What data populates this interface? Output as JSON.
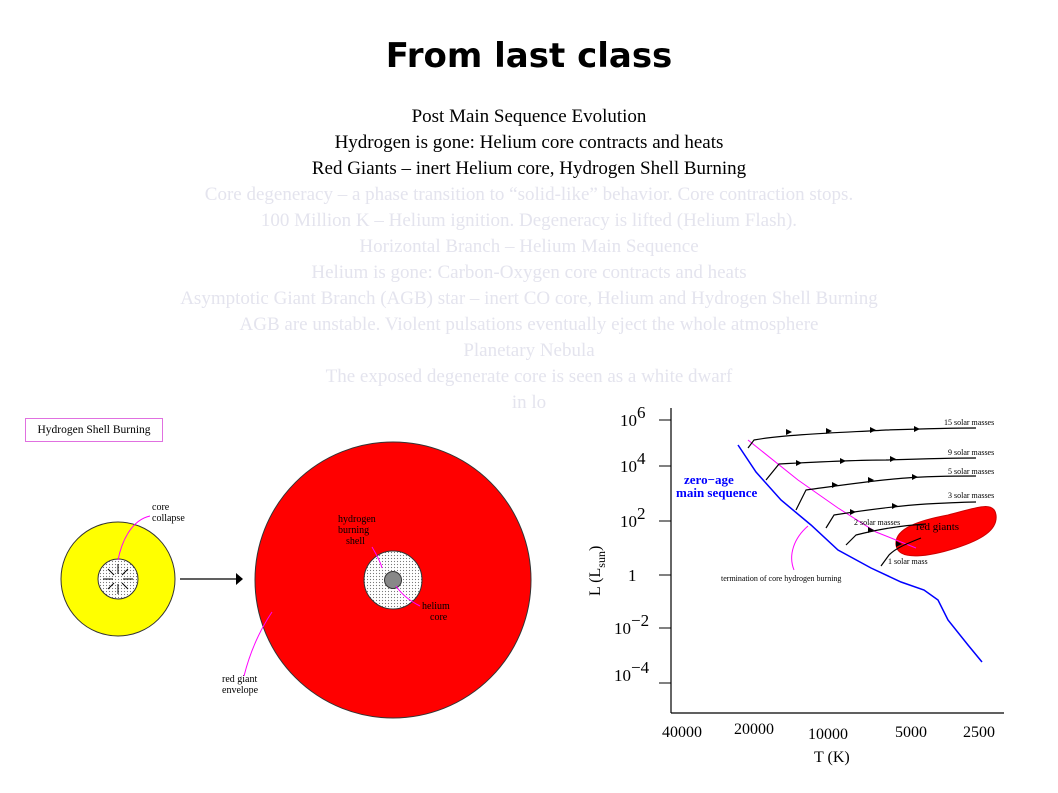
{
  "title": "From last class",
  "lines": [
    "Post Main Sequence Evolution",
    "Hydrogen is gone: Helium core contracts and heats",
    "Red Giants –  inert Helium core, Hydrogen Shell Burning",
    "Core degeneracy – a phase transition to “solid-like” behavior. Core contraction stops.",
    "100 Million K – Helium ignition. Degeneracy is lifted (Helium Flash).",
    "Horizontal Branch – Helium Main Sequence",
    "Helium is gone: Carbon-Oxygen core contracts and heats",
    "Asymptotic Giant Branch (AGB) star – inert CO core, Helium and Hydrogen Shell Burning",
    "AGB are unstable. Violent pulsations eventually eject the whole atmosphere",
    "Planetary Nebula",
    "The exposed degenerate core is seen as a white dwarf",
    "in lo"
  ],
  "diagram": {
    "box_label": "Hydrogen Shell Burning",
    "core_collapse": [
      "core",
      "collapse"
    ],
    "hydrogen_shell": [
      "hydrogen",
      "burning",
      "shell"
    ],
    "helium_core": [
      "helium",
      "core"
    ],
    "envelope": [
      "red giant",
      "envelope"
    ],
    "colors": {
      "star": "#ffff00",
      "giant": "#ff0000",
      "accent": "#ff00ff"
    }
  },
  "hr_diagram": {
    "y_ticks": [
      {
        "base": "10",
        "exp": "6"
      },
      {
        "base": "10",
        "exp": "4"
      },
      {
        "base": "10",
        "exp": "2"
      },
      {
        "base": "1",
        "exp": ""
      },
      {
        "base": "10",
        "exp": "−2"
      },
      {
        "base": "10",
        "exp": "−4"
      }
    ],
    "x_ticks": [
      "40000",
      "20000",
      "10000",
      "5000",
      "2500"
    ],
    "xlabel": "T (K)",
    "ylabel_main": "L  (L",
    "ylabel_sub": "sun",
    "ylabel_close": ")",
    "zams_label": [
      "zero−age",
      "main sequence"
    ],
    "mass_labels": [
      "15 solar masses",
      "9 solar masses",
      "5 solar masses",
      "3 solar masses",
      "2 solar masses",
      "1 solar mass"
    ],
    "red_giants": "red giants",
    "termination": "termination of core hydrogen burning",
    "colors": {
      "zams": "#0000ff",
      "region": "#ff0000",
      "termination": "#ff00ff"
    }
  }
}
